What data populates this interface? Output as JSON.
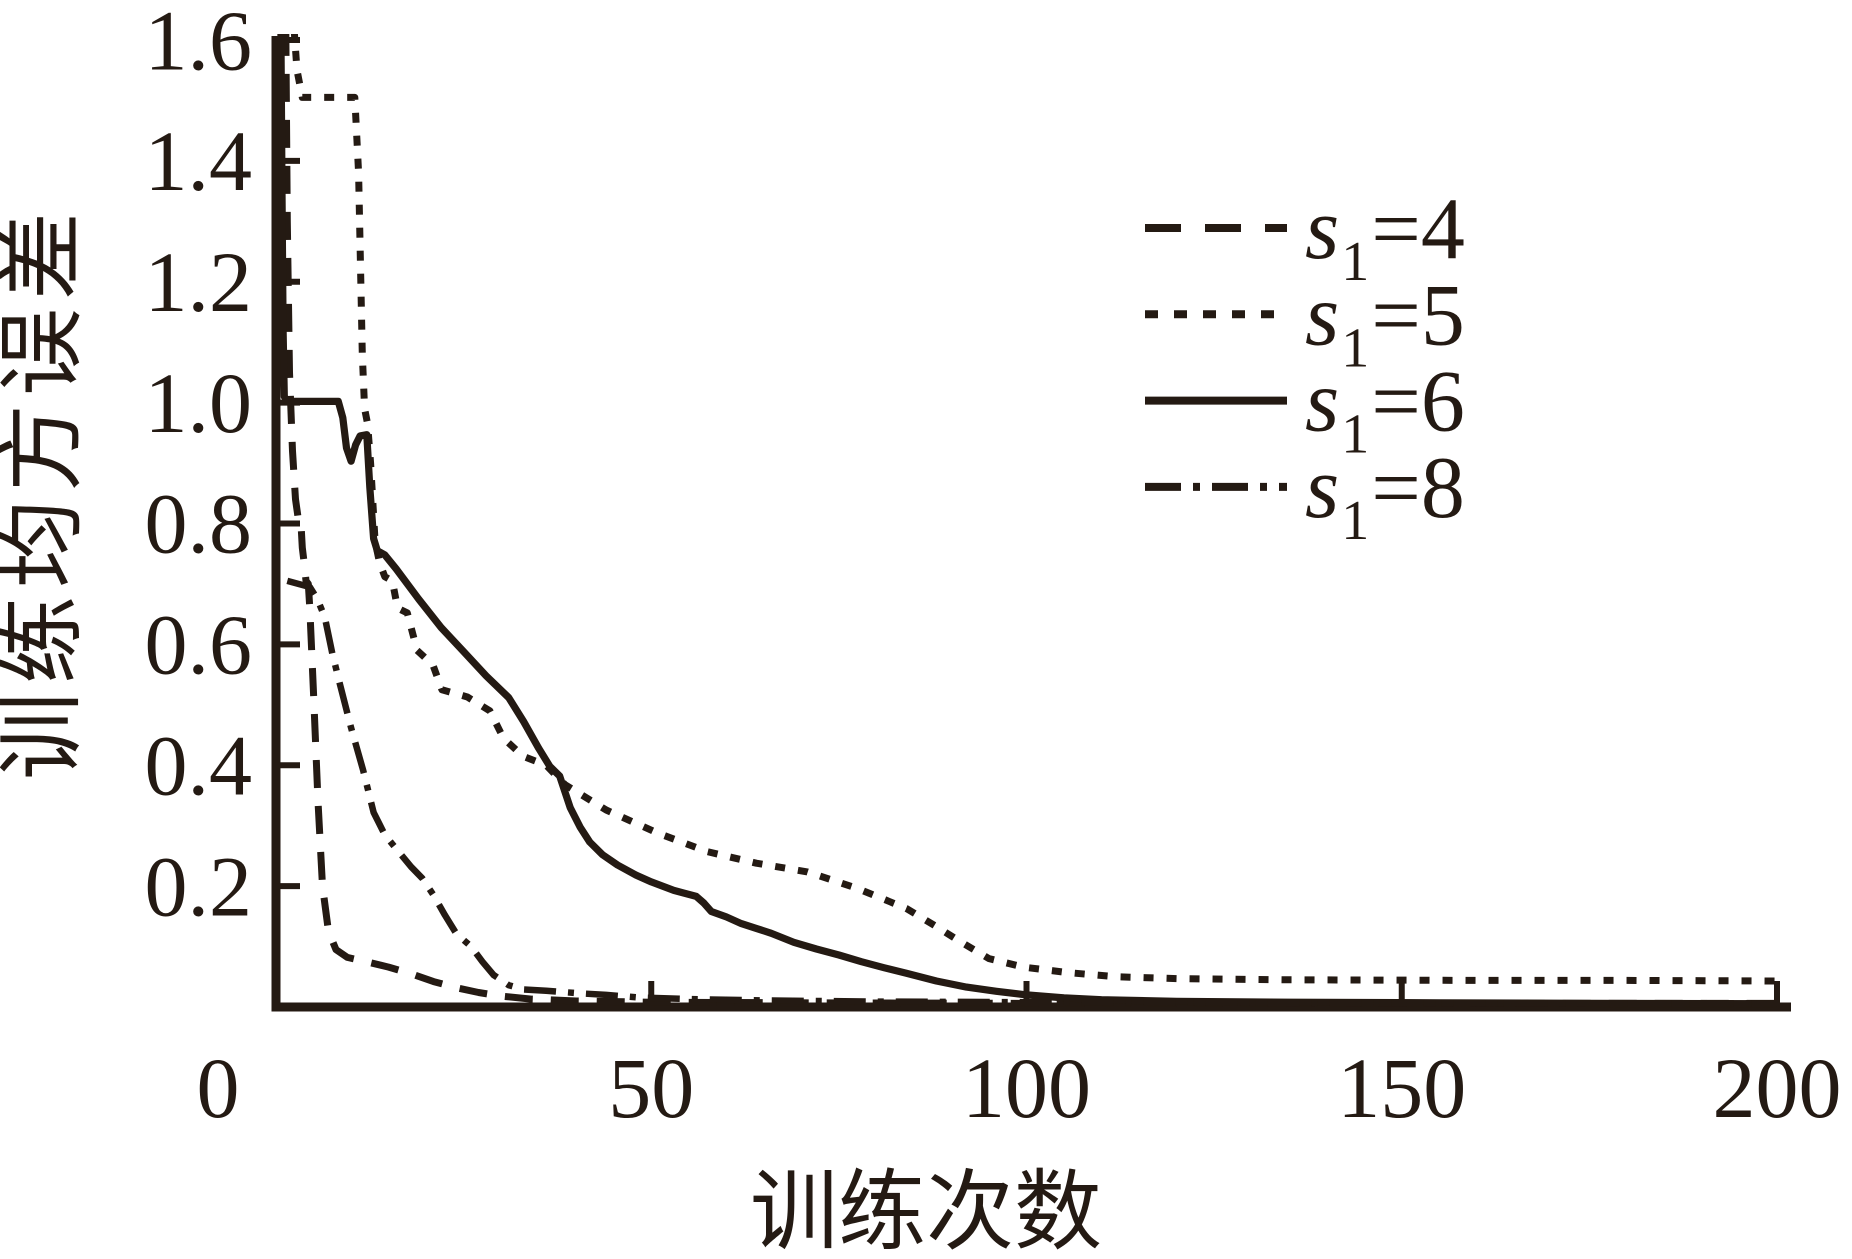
{
  "figure": {
    "ink_color": "#241a13",
    "background": "#ffffff",
    "x_axis_title": "训练次数",
    "y_axis_title": "训练均方误差",
    "x_tick_labels": [
      "0",
      "50",
      "100",
      "150",
      "200"
    ],
    "y_tick_labels": [
      "0.2",
      "0.4",
      "0.6",
      "0.8",
      "1.0",
      "1.2",
      "1.4",
      "1.6"
    ],
    "legend": [
      {
        "label": "s₁=4",
        "sym": "s",
        "sub": "1",
        "rest": "=4",
        "style": "dashed"
      },
      {
        "label": "s₁=5",
        "sym": "s",
        "sub": "1",
        "rest": "=5",
        "style": "dotted"
      },
      {
        "label": "s₁=6",
        "sym": "s",
        "sub": "1",
        "rest": "=6",
        "style": "solid"
      },
      {
        "label": "s₁=8",
        "sym": "s",
        "sub": "1",
        "rest": "=8",
        "style": "dashdot"
      }
    ]
  },
  "chart_data": {
    "type": "line",
    "title": "",
    "xlabel": "训练次数",
    "ylabel": "训练均方误差",
    "xlim": [
      0,
      200
    ],
    "ylim": [
      0,
      1.6
    ],
    "x_ticks": [
      0,
      50,
      100,
      150,
      200
    ],
    "y_ticks": [
      0.2,
      0.4,
      0.6,
      0.8,
      1.0,
      1.2,
      1.4,
      1.6
    ],
    "grid": false,
    "legend_position": "upper right",
    "series": [
      {
        "name": "s1=4",
        "line_style": "dashed",
        "points": [
          [
            1.3,
            1.62
          ],
          [
            1.5,
            1.3
          ],
          [
            1.8,
            1.05
          ],
          [
            2.2,
            0.92
          ],
          [
            2.6,
            0.84
          ],
          [
            3.0,
            0.805
          ],
          [
            3.3,
            0.805
          ],
          [
            3.5,
            0.76
          ],
          [
            3.8,
            0.73
          ],
          [
            4.0,
            0.705
          ],
          [
            4.3,
            0.7
          ],
          [
            4.5,
            0.66
          ],
          [
            5.0,
            0.52
          ],
          [
            5.6,
            0.34
          ],
          [
            6.2,
            0.2
          ],
          [
            7.0,
            0.125
          ],
          [
            8.0,
            0.095
          ],
          [
            9.5,
            0.082
          ],
          [
            12,
            0.075
          ],
          [
            15,
            0.066
          ],
          [
            18,
            0.055
          ],
          [
            21,
            0.042
          ],
          [
            24,
            0.032
          ],
          [
            27,
            0.024
          ],
          [
            30,
            0.018
          ],
          [
            34,
            0.013
          ],
          [
            40,
            0.01
          ],
          [
            50,
            0.008
          ],
          [
            70,
            0.007
          ],
          [
            100,
            0.006
          ],
          [
            150,
            0.006
          ],
          [
            200,
            0.006
          ]
        ]
      },
      {
        "name": "s1=5",
        "line_style": "dotted",
        "points": [
          [
            2.4,
            1.62
          ],
          [
            2.8,
            1.55
          ],
          [
            3.5,
            1.505
          ],
          [
            10.5,
            1.505
          ],
          [
            11.0,
            1.38
          ],
          [
            11.5,
            1.08
          ],
          [
            11.8,
            0.99
          ],
          [
            12.2,
            0.965
          ],
          [
            12.6,
            0.9
          ],
          [
            13.2,
            0.77
          ],
          [
            13.8,
            0.735
          ],
          [
            14.5,
            0.712
          ],
          [
            15.5,
            0.705
          ],
          [
            16.2,
            0.66
          ],
          [
            17.5,
            0.652
          ],
          [
            18.8,
            0.59
          ],
          [
            20.9,
            0.566
          ],
          [
            22.1,
            0.525
          ],
          [
            25.5,
            0.513
          ],
          [
            28.5,
            0.49
          ],
          [
            30.3,
            0.445
          ],
          [
            32.9,
            0.415
          ],
          [
            36,
            0.4
          ],
          [
            38.5,
            0.368
          ],
          [
            44,
            0.326
          ],
          [
            50.8,
            0.288
          ],
          [
            57.5,
            0.257
          ],
          [
            64,
            0.238
          ],
          [
            70.8,
            0.2235
          ],
          [
            77.5,
            0.196
          ],
          [
            84,
            0.163
          ],
          [
            88,
            0.133
          ],
          [
            90.8,
            0.111
          ],
          [
            95,
            0.08
          ],
          [
            99.6,
            0.066
          ],
          [
            105.5,
            0.057
          ],
          [
            112,
            0.05
          ],
          [
            120,
            0.047
          ],
          [
            135,
            0.045
          ],
          [
            160,
            0.044
          ],
          [
            180,
            0.044
          ],
          [
            200,
            0.043
          ]
        ]
      },
      {
        "name": "s1=6",
        "line_style": "solid",
        "points": [
          [
            0.65,
            1.62
          ],
          [
            0.8,
            1.35
          ],
          [
            0.95,
            1.12
          ],
          [
            1.1,
            1.01
          ],
          [
            1.5,
            1.002
          ],
          [
            8.3,
            1.002
          ],
          [
            8.9,
            0.975
          ],
          [
            9.4,
            0.925
          ],
          [
            10.0,
            0.903
          ],
          [
            10.6,
            0.93
          ],
          [
            11.2,
            0.945
          ],
          [
            12.1,
            0.947
          ],
          [
            12.5,
            0.86
          ],
          [
            13.0,
            0.775
          ],
          [
            13.5,
            0.755
          ],
          [
            14.5,
            0.748
          ],
          [
            16,
            0.725
          ],
          [
            19,
            0.675
          ],
          [
            22,
            0.628
          ],
          [
            25,
            0.588
          ],
          [
            28,
            0.548
          ],
          [
            31,
            0.512
          ],
          [
            33,
            0.472
          ],
          [
            35,
            0.428
          ],
          [
            36.5,
            0.398
          ],
          [
            37.8,
            0.382
          ],
          [
            39.2,
            0.33
          ],
          [
            40.5,
            0.298
          ],
          [
            41.8,
            0.273
          ],
          [
            43.5,
            0.252
          ],
          [
            45.5,
            0.235
          ],
          [
            48,
            0.218
          ],
          [
            50,
            0.207
          ],
          [
            53,
            0.193
          ],
          [
            56,
            0.183
          ],
          [
            57,
            0.172
          ],
          [
            58,
            0.158
          ],
          [
            60,
            0.149
          ],
          [
            62,
            0.138
          ],
          [
            64,
            0.13
          ],
          [
            66,
            0.122
          ],
          [
            69,
            0.107
          ],
          [
            72,
            0.096
          ],
          [
            75,
            0.086
          ],
          [
            78,
            0.075
          ],
          [
            81,
            0.065
          ],
          [
            84,
            0.056
          ],
          [
            88,
            0.043
          ],
          [
            92,
            0.033
          ],
          [
            96,
            0.026
          ],
          [
            100,
            0.02
          ],
          [
            105,
            0.015
          ],
          [
            110,
            0.012
          ],
          [
            120,
            0.0095
          ],
          [
            135,
            0.008
          ],
          [
            155,
            0.007
          ],
          [
            175,
            0.006
          ],
          [
            200,
            0.0055
          ]
        ]
      },
      {
        "name": "s1=8",
        "line_style": "dashdot",
        "points": [
          [
            1.5,
            0.705
          ],
          [
            4.5,
            0.695
          ],
          [
            5.5,
            0.675
          ],
          [
            6.5,
            0.645
          ],
          [
            7.5,
            0.585
          ],
          [
            8.5,
            0.535
          ],
          [
            10,
            0.462
          ],
          [
            11.6,
            0.392
          ],
          [
            13,
            0.322
          ],
          [
            14.5,
            0.285
          ],
          [
            16,
            0.262
          ],
          [
            18,
            0.232
          ],
          [
            19.5,
            0.213
          ],
          [
            21,
            0.185
          ],
          [
            22.5,
            0.152
          ],
          [
            24,
            0.122
          ],
          [
            26,
            0.1
          ],
          [
            27.5,
            0.075
          ],
          [
            29,
            0.053
          ],
          [
            31,
            0.036
          ],
          [
            33,
            0.029
          ],
          [
            36,
            0.027
          ],
          [
            40,
            0.023
          ],
          [
            44,
            0.02
          ],
          [
            48,
            0.016
          ],
          [
            55,
            0.013
          ],
          [
            65,
            0.011
          ],
          [
            80,
            0.009
          ],
          [
            100,
            0.008
          ],
          [
            130,
            0.007
          ],
          [
            165,
            0.006
          ],
          [
            200,
            0.006
          ]
        ]
      }
    ]
  }
}
